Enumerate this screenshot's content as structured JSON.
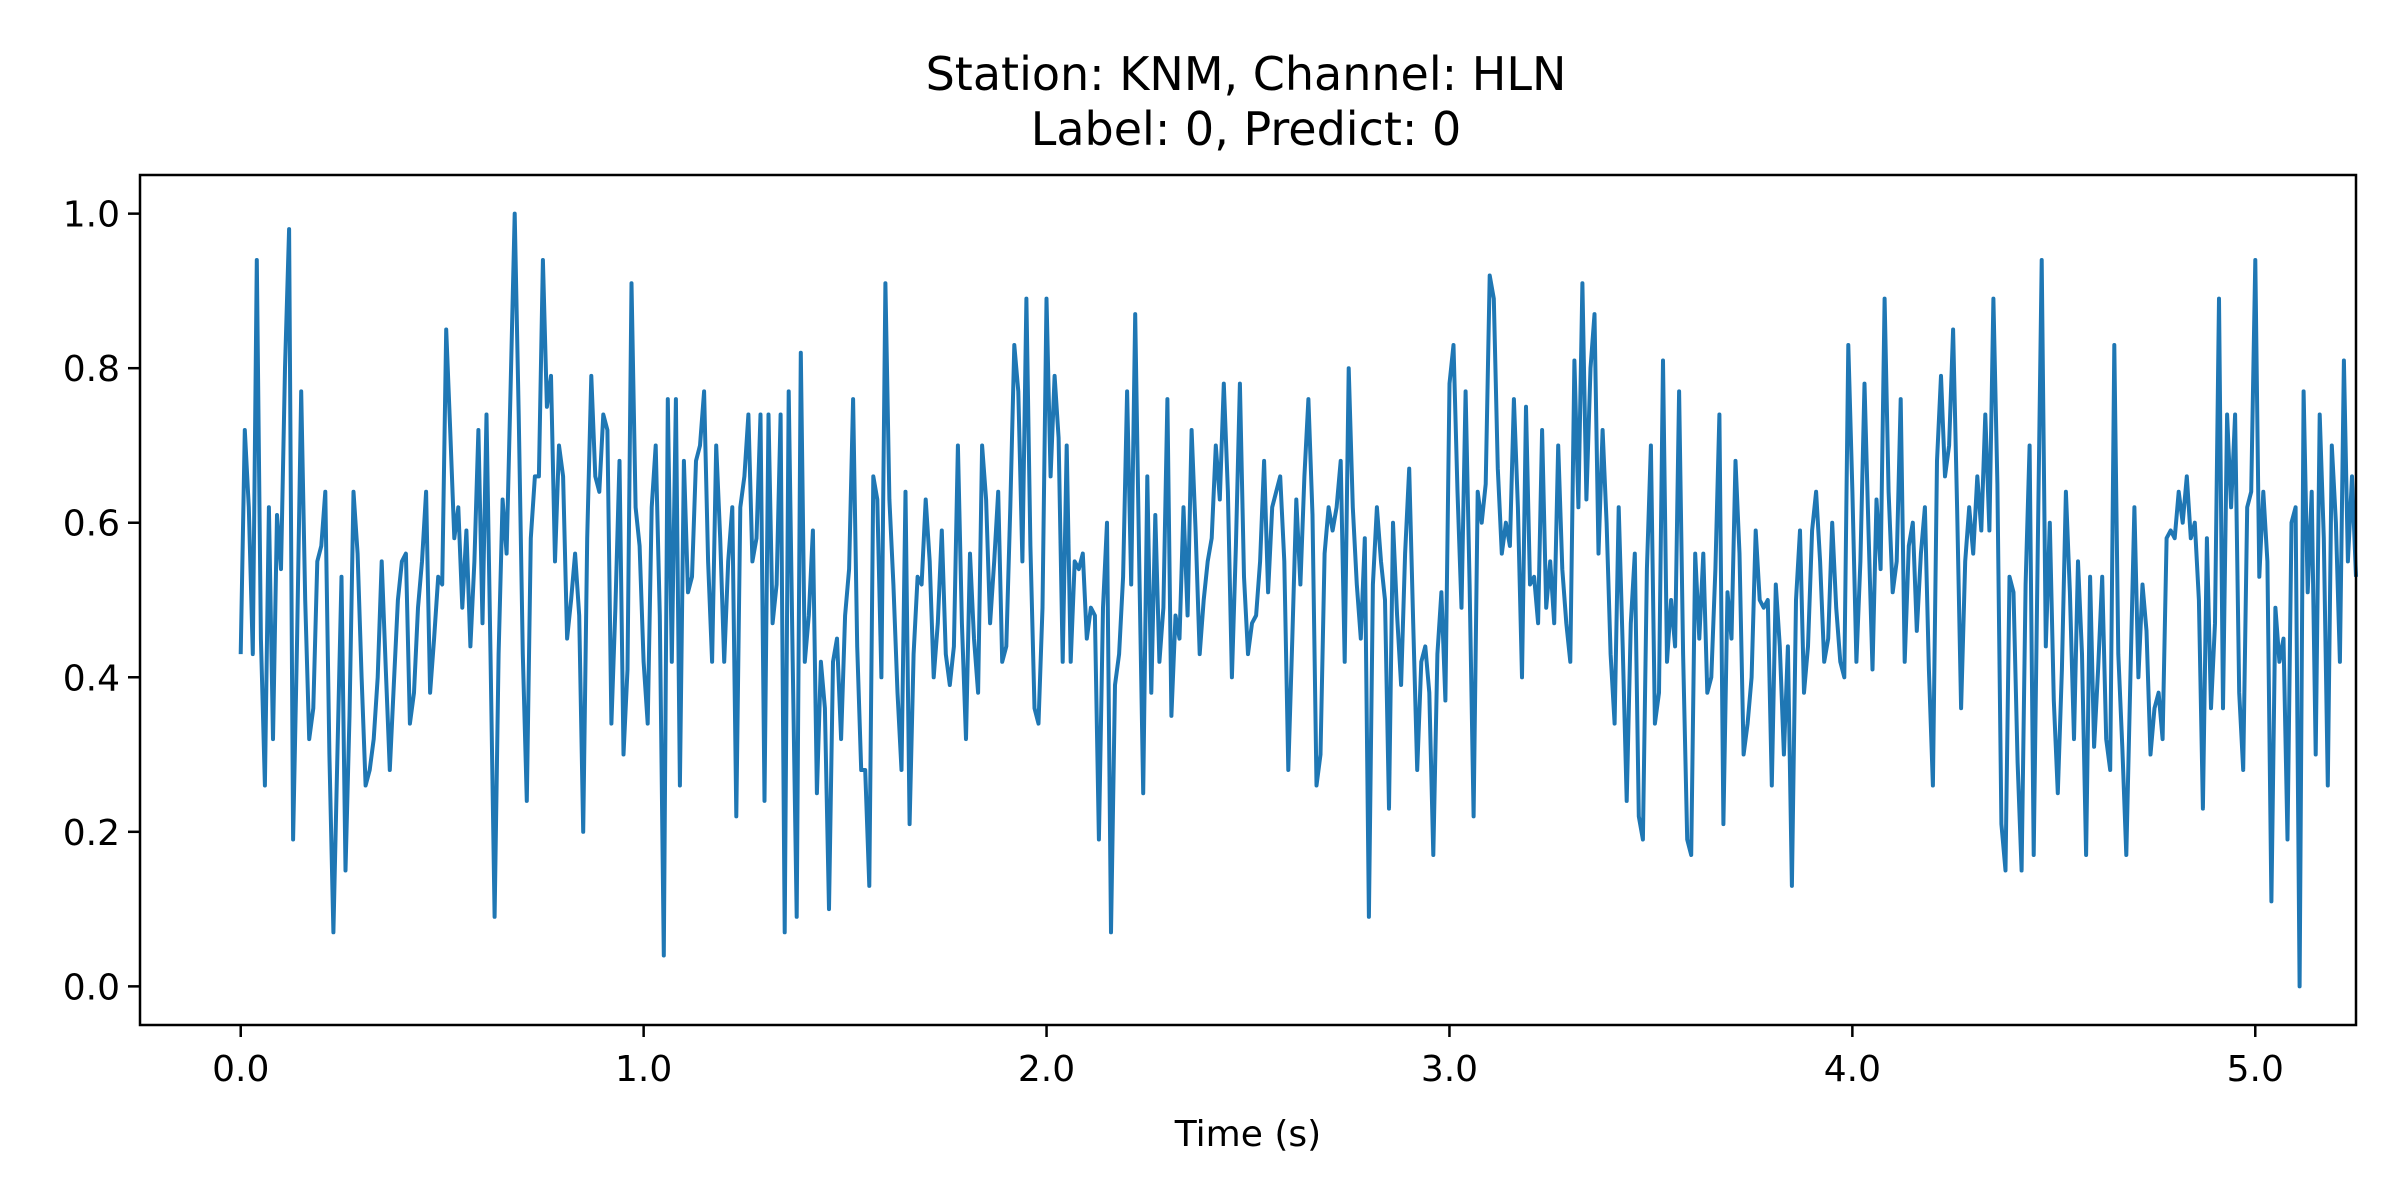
{
  "chart_data": {
    "type": "line",
    "title": "Station: KNM, Channel: HLN",
    "subtitle": "Label: 0, Predict: 0",
    "xlabel": "Time (s)",
    "ylabel": "",
    "xlim": [
      -0.25,
      5.25
    ],
    "ylim": [
      -0.05,
      1.05
    ],
    "xticks": [
      0.0,
      1.0,
      2.0,
      3.0,
      4.0,
      5.0
    ],
    "xtick_labels": [
      "0.0",
      "1.0",
      "2.0",
      "3.0",
      "4.0",
      "5.0"
    ],
    "yticks": [
      0.0,
      0.2,
      0.4,
      0.6,
      0.8,
      1.0
    ],
    "ytick_labels": [
      "0.0",
      "0.2",
      "0.4",
      "0.6",
      "0.8",
      "1.0"
    ],
    "grid": false,
    "line_color": "#1f77b4",
    "sample_interval": 0.01,
    "series": [
      {
        "values": [
          0.43,
          0.72,
          0.62,
          0.43,
          0.94,
          0.45,
          0.26,
          0.62,
          0.32,
          0.61,
          0.54,
          0.8,
          0.98,
          0.19,
          0.45,
          0.77,
          0.5,
          0.32,
          0.36,
          0.55,
          0.57,
          0.64,
          0.3,
          0.07,
          0.3,
          0.53,
          0.15,
          0.35,
          0.64,
          0.56,
          0.4,
          0.26,
          0.28,
          0.32,
          0.4,
          0.55,
          0.41,
          0.28,
          0.39,
          0.5,
          0.55,
          0.56,
          0.34,
          0.38,
          0.49,
          0.55,
          0.64,
          0.38,
          0.45,
          0.53,
          0.52,
          0.85,
          0.72,
          0.58,
          0.62,
          0.49,
          0.59,
          0.44,
          0.55,
          0.72,
          0.47,
          0.74,
          0.43,
          0.09,
          0.43,
          0.63,
          0.56,
          0.78,
          1.0,
          0.74,
          0.43,
          0.24,
          0.58,
          0.66,
          0.66,
          0.94,
          0.75,
          0.79,
          0.55,
          0.7,
          0.66,
          0.45,
          0.5,
          0.56,
          0.48,
          0.2,
          0.58,
          0.79,
          0.66,
          0.64,
          0.74,
          0.72,
          0.34,
          0.49,
          0.68,
          0.3,
          0.41,
          0.91,
          0.62,
          0.57,
          0.42,
          0.34,
          0.62,
          0.7,
          0.48,
          0.04,
          0.76,
          0.42,
          0.76,
          0.26,
          0.68,
          0.51,
          0.53,
          0.68,
          0.7,
          0.77,
          0.55,
          0.42,
          0.7,
          0.58,
          0.42,
          0.55,
          0.62,
          0.22,
          0.62,
          0.66,
          0.74,
          0.55,
          0.58,
          0.74,
          0.24,
          0.74,
          0.47,
          0.52,
          0.74,
          0.07,
          0.77,
          0.42,
          0.09,
          0.82,
          0.42,
          0.48,
          0.59,
          0.25,
          0.42,
          0.36,
          0.1,
          0.42,
          0.45,
          0.32,
          0.48,
          0.54,
          0.76,
          0.44,
          0.28,
          0.28,
          0.13,
          0.66,
          0.63,
          0.4,
          0.91,
          0.63,
          0.52,
          0.38,
          0.28,
          0.64,
          0.21,
          0.43,
          0.53,
          0.52,
          0.63,
          0.55,
          0.4,
          0.47,
          0.59,
          0.43,
          0.39,
          0.44,
          0.7,
          0.47,
          0.32,
          0.56,
          0.45,
          0.38,
          0.7,
          0.63,
          0.47,
          0.55,
          0.64,
          0.42,
          0.44,
          0.62,
          0.83,
          0.77,
          0.55,
          0.89,
          0.57,
          0.36,
          0.34,
          0.49,
          0.89,
          0.66,
          0.79,
          0.71,
          0.42,
          0.7,
          0.42,
          0.55,
          0.54,
          0.56,
          0.45,
          0.49,
          0.48,
          0.19,
          0.49,
          0.6,
          0.07,
          0.39,
          0.43,
          0.53,
          0.77,
          0.52,
          0.87,
          0.55,
          0.25,
          0.66,
          0.38,
          0.61,
          0.42,
          0.49,
          0.76,
          0.35,
          0.48,
          0.45,
          0.62,
          0.48,
          0.72,
          0.59,
          0.43,
          0.5,
          0.55,
          0.58,
          0.7,
          0.63,
          0.78,
          0.64,
          0.4,
          0.57,
          0.78,
          0.53,
          0.43,
          0.47,
          0.48,
          0.55,
          0.68,
          0.51,
          0.62,
          0.64,
          0.66,
          0.55,
          0.28,
          0.45,
          0.63,
          0.52,
          0.66,
          0.76,
          0.61,
          0.26,
          0.3,
          0.56,
          0.62,
          0.59,
          0.62,
          0.68,
          0.42,
          0.8,
          0.62,
          0.52,
          0.45,
          0.58,
          0.09,
          0.52,
          0.62,
          0.55,
          0.5,
          0.23,
          0.6,
          0.48,
          0.39,
          0.56,
          0.67,
          0.47,
          0.28,
          0.42,
          0.44,
          0.38,
          0.17,
          0.43,
          0.51,
          0.37,
          0.78,
          0.83,
          0.64,
          0.49,
          0.77,
          0.52,
          0.22,
          0.64,
          0.6,
          0.65,
          0.92,
          0.89,
          0.67,
          0.56,
          0.6,
          0.57,
          0.76,
          0.62,
          0.4,
          0.75,
          0.52,
          0.53,
          0.47,
          0.72,
          0.49,
          0.55,
          0.47,
          0.7,
          0.54,
          0.47,
          0.42,
          0.81,
          0.62,
          0.91,
          0.63,
          0.8,
          0.87,
          0.56,
          0.72,
          0.6,
          0.43,
          0.34,
          0.62,
          0.44,
          0.24,
          0.47,
          0.56,
          0.22,
          0.19,
          0.54,
          0.7,
          0.34,
          0.38,
          0.81,
          0.42,
          0.5,
          0.44,
          0.77,
          0.43,
          0.19,
          0.17,
          0.56,
          0.45,
          0.56,
          0.38,
          0.4,
          0.54,
          0.74,
          0.21,
          0.51,
          0.45,
          0.68,
          0.56,
          0.3,
          0.34,
          0.4,
          0.59,
          0.5,
          0.49,
          0.5,
          0.26,
          0.52,
          0.44,
          0.3,
          0.44,
          0.13,
          0.5,
          0.59,
          0.38,
          0.44,
          0.59,
          0.64,
          0.55,
          0.42,
          0.45,
          0.6,
          0.49,
          0.42,
          0.4,
          0.83,
          0.64,
          0.42,
          0.55,
          0.78,
          0.59,
          0.41,
          0.63,
          0.54,
          0.89,
          0.64,
          0.51,
          0.55,
          0.76,
          0.42,
          0.57,
          0.6,
          0.46,
          0.56,
          0.62,
          0.41,
          0.26,
          0.68,
          0.79,
          0.66,
          0.7,
          0.85,
          0.62,
          0.36,
          0.55,
          0.62,
          0.56,
          0.66,
          0.59,
          0.74,
          0.59,
          0.89,
          0.65,
          0.21,
          0.15,
          0.53,
          0.51,
          0.29,
          0.15,
          0.52,
          0.7,
          0.17,
          0.56,
          0.94,
          0.44,
          0.6,
          0.37,
          0.25,
          0.41,
          0.64,
          0.51,
          0.32,
          0.55,
          0.43,
          0.17,
          0.53,
          0.31,
          0.41,
          0.53,
          0.32,
          0.28,
          0.83,
          0.43,
          0.31,
          0.17,
          0.4,
          0.62,
          0.4,
          0.52,
          0.46,
          0.3,
          0.36,
          0.38,
          0.32,
          0.58,
          0.59,
          0.58,
          0.64,
          0.6,
          0.66,
          0.58,
          0.6,
          0.5,
          0.23,
          0.58,
          0.36,
          0.47,
          0.89,
          0.36,
          0.74,
          0.62,
          0.74,
          0.38,
          0.28,
          0.62,
          0.64,
          0.94,
          0.53,
          0.64,
          0.55,
          0.11,
          0.49,
          0.42,
          0.45,
          0.19,
          0.6,
          0.62,
          0.0,
          0.77,
          0.51,
          0.64,
          0.3,
          0.74,
          0.58,
          0.26,
          0.7,
          0.6,
          0.42,
          0.81,
          0.55,
          0.66,
          0.53
        ]
      }
    ]
  }
}
